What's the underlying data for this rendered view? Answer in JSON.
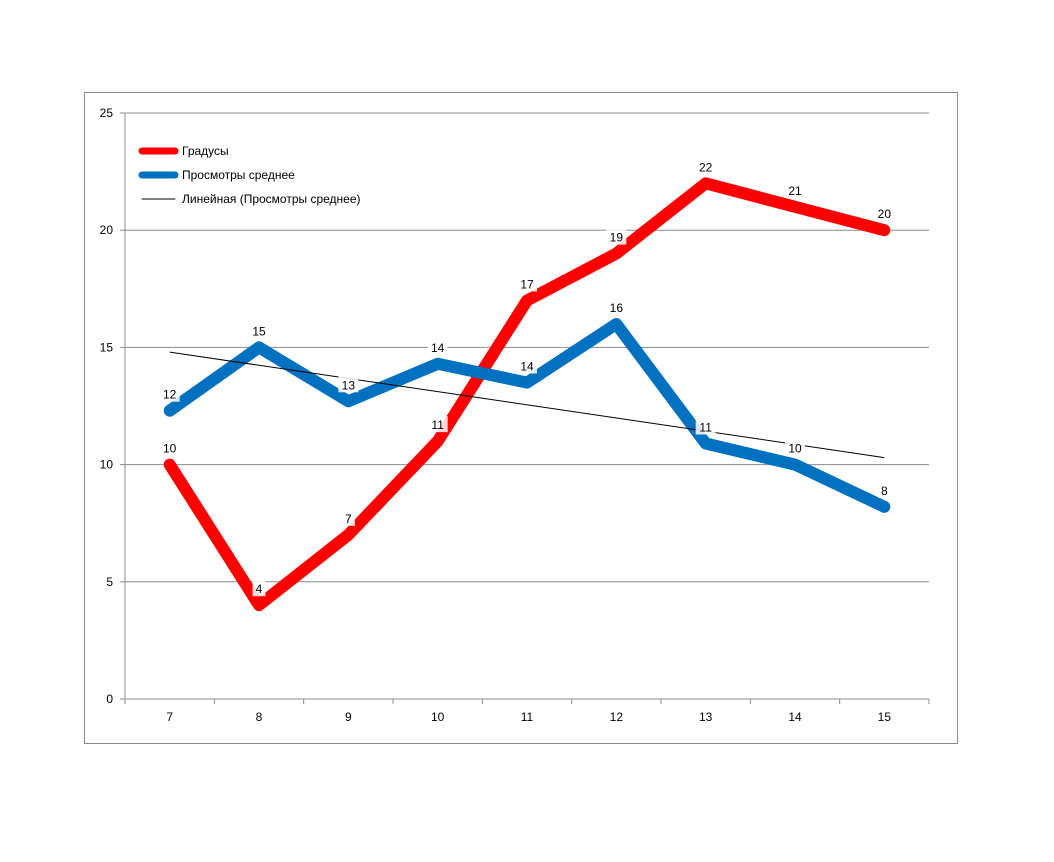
{
  "chart_data": {
    "type": "line",
    "title": "",
    "xlabel": "",
    "ylabel": "",
    "categories": [
      "7",
      "8",
      "9",
      "10",
      "11",
      "12",
      "13",
      "14",
      "15"
    ],
    "x": [
      7,
      8,
      9,
      10,
      11,
      12,
      13,
      14,
      15
    ],
    "ylim": [
      0,
      25
    ],
    "yticks": [
      0,
      5,
      10,
      15,
      20,
      25
    ],
    "grid": true,
    "legend_position": "top-left",
    "series": [
      {
        "name": "Градусы",
        "color": "#ff0000",
        "values": [
          10,
          4,
          7,
          11,
          17,
          19,
          22,
          21,
          20
        ],
        "labels": [
          "10",
          "4",
          "7",
          "11",
          "17",
          "19",
          "22",
          "21",
          "20"
        ]
      },
      {
        "name": "Просмотры среднее",
        "color": "#0070c0",
        "values": [
          12.3,
          15,
          12.7,
          14.3,
          13.5,
          16,
          10.9,
          10,
          8.2
        ],
        "labels": [
          "12",
          "15",
          "13",
          "14",
          "14",
          "16",
          "11",
          "10",
          "8"
        ]
      },
      {
        "name": "Линейная (Просмотры среднее)",
        "color": "#000000",
        "type": "trendline",
        "values": [
          14.8,
          14.24,
          13.68,
          13.11,
          12.55,
          11.99,
          11.42,
          10.86,
          10.3
        ]
      }
    ]
  }
}
